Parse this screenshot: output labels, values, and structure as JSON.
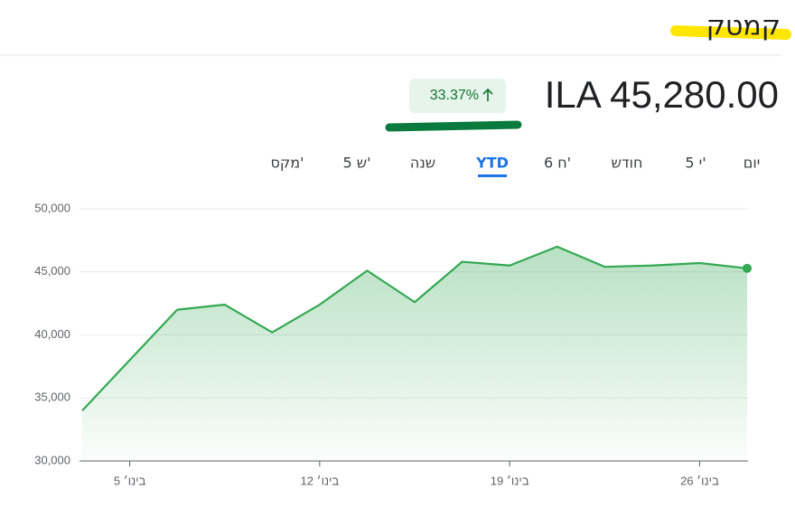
{
  "header": {
    "title": "קמטק",
    "price": "ILA 45,280.00",
    "change": "33.37%"
  },
  "tabs": {
    "items": [
      "יום",
      "5 י'",
      "חודש",
      "6 ח'",
      "YTD",
      "שנה",
      "5 ש'",
      "מקס'"
    ],
    "selected": 4
  },
  "chart_data": {
    "type": "line",
    "categories": [
      null,
      "5 בינו׳",
      null,
      null,
      null,
      "12 בינו׳",
      null,
      null,
      null,
      "19 בינו׳",
      null,
      null,
      null,
      "26 בינו׳",
      null
    ],
    "values": [
      34000,
      38000,
      42000,
      42400,
      40200,
      42400,
      45100,
      42600,
      45800,
      45500,
      47000,
      45400,
      45500,
      45700,
      45280
    ],
    "color": "#34a853",
    "ylim": [
      30000,
      50000
    ],
    "yticks": [
      {
        "value": 30000,
        "label": "30,000"
      },
      {
        "value": 35000,
        "label": "35,000"
      },
      {
        "value": 40000,
        "label": "40,000"
      },
      {
        "value": 45000,
        "label": "45,000"
      },
      {
        "value": 50000,
        "label": "50,000"
      }
    ],
    "grid": true
  }
}
